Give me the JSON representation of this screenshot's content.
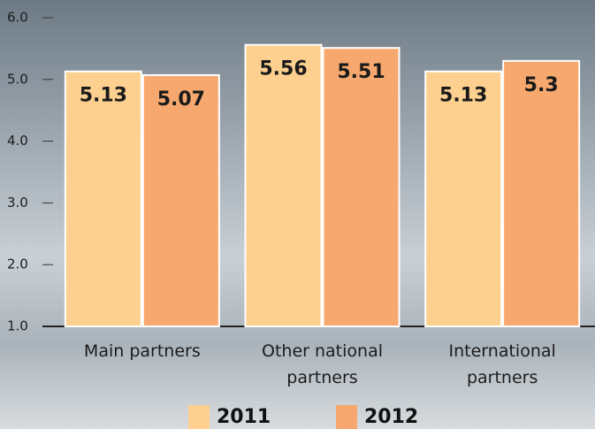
{
  "chart_data": {
    "type": "bar",
    "categories": [
      "Main partners",
      "Other national partners",
      "International partners"
    ],
    "series": [
      {
        "name": "2011",
        "color": "#fdd08f",
        "values": [
          5.13,
          5.56,
          5.13
        ]
      },
      {
        "name": "2012",
        "color": "#f6a86e",
        "values": [
          5.07,
          5.51,
          5.3
        ]
      }
    ],
    "ylim": [
      1.0,
      6.0
    ],
    "yticks": [
      {
        "value": 1,
        "label": "1.0"
      },
      {
        "value": 2,
        "label": "2.0"
      },
      {
        "value": 3,
        "label": "3.0"
      },
      {
        "value": 4,
        "label": "4.0"
      },
      {
        "value": 5,
        "label": "5.0"
      },
      {
        "value": 6,
        "label": "6.0"
      }
    ]
  }
}
